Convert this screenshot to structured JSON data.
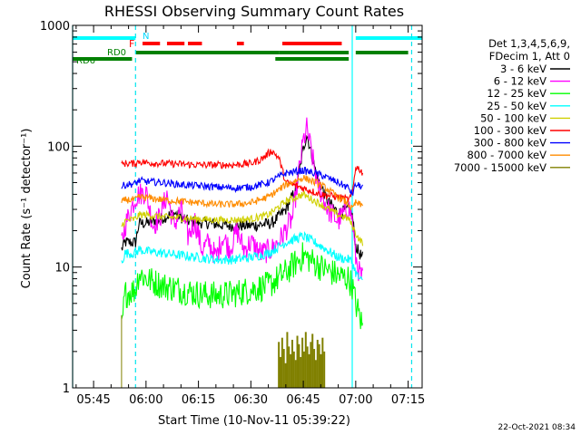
{
  "chart_data": {
    "type": "line",
    "title": "RHESSI Observing Summary Count Rates",
    "xlabel": "Start Time (10-Nov-11 05:39:22)",
    "ylabel": "Count Rate (s⁻¹ detector⁻¹)",
    "y_scale": "log",
    "ylim": [
      1,
      1000
    ],
    "xlim": [
      "05:39",
      "07:19"
    ],
    "x_ticks": [
      "05:45",
      "06:00",
      "06:15",
      "06:30",
      "06:45",
      "07:00",
      "07:15"
    ],
    "y_ticks": [
      "1",
      "10",
      "100",
      "1000"
    ],
    "grid": false,
    "legend_placement": "right",
    "legend_header": [
      "Det 1,3,4,5,6,9,",
      "FDecim 1, Att 0"
    ],
    "flag_labels": {
      "night": "N",
      "flare": "F",
      "rd0": "RD0",
      "rd6": "RD6"
    },
    "flags": {
      "night": [
        [
          "05:39",
          "05:57"
        ],
        [
          "07:00",
          "07:19"
        ]
      ],
      "flare": [
        [
          "05:59",
          "06:04"
        ],
        [
          "06:06",
          "06:11"
        ],
        [
          "06:12",
          "06:16"
        ],
        [
          "06:26",
          "06:28"
        ],
        [
          "06:39",
          "06:56"
        ]
      ],
      "rd0": [
        [
          "05:57",
          "06:38"
        ],
        [
          "06:38",
          "06:58"
        ],
        [
          "07:00",
          "07:15"
        ]
      ],
      "rd6": [
        [
          "05:39",
          "05:56"
        ],
        [
          "06:37",
          "06:58"
        ]
      ]
    },
    "vlines": [
      {
        "x": "05:39",
        "color": "#00ffff",
        "style": "solid"
      },
      {
        "x": "05:57",
        "color": "#00e5ee",
        "style": "dashed"
      },
      {
        "x": "06:59",
        "color": "#00ffff",
        "style": "solid"
      },
      {
        "x": "07:16",
        "color": "#00e5ee",
        "style": "dashed"
      }
    ],
    "time_stamp": "22-Oct-2021 08:34",
    "series": [
      {
        "name": "3 - 6 keV",
        "color": "#000000",
        "noise": 0.05,
        "points": [
          [
            "05:53",
            14
          ],
          [
            "05:54",
            16
          ],
          [
            "05:57",
            16
          ],
          [
            "05:58",
            23
          ],
          [
            "06:00",
            23
          ],
          [
            "06:04",
            25
          ],
          [
            "06:08",
            28
          ],
          [
            "06:12",
            24
          ],
          [
            "06:18",
            23
          ],
          [
            "06:24",
            22
          ],
          [
            "06:30",
            22
          ],
          [
            "06:36",
            23
          ],
          [
            "06:40",
            30
          ],
          [
            "06:43",
            45
          ],
          [
            "06:45",
            95
          ],
          [
            "06:46",
            125
          ],
          [
            "06:47",
            95
          ],
          [
            "06:49",
            55
          ],
          [
            "06:52",
            35
          ],
          [
            "06:55",
            28
          ],
          [
            "06:58",
            30
          ],
          [
            "06:59",
            27
          ],
          [
            "07:00",
            15
          ],
          [
            "07:01",
            13
          ],
          [
            "07:02",
            12
          ]
        ]
      },
      {
        "name": "6 - 12 keV",
        "color": "#ff00ff",
        "noise": 0.1,
        "points": [
          [
            "05:53",
            16
          ],
          [
            "05:54",
            22
          ],
          [
            "05:57",
            38
          ],
          [
            "05:58",
            40
          ],
          [
            "06:00",
            42
          ],
          [
            "06:02",
            22
          ],
          [
            "06:04",
            26
          ],
          [
            "06:06",
            40
          ],
          [
            "06:08",
            22
          ],
          [
            "06:10",
            30
          ],
          [
            "06:12",
            18
          ],
          [
            "06:14",
            24
          ],
          [
            "06:16",
            14
          ],
          [
            "06:18",
            16
          ],
          [
            "06:20",
            12
          ],
          [
            "06:22",
            18
          ],
          [
            "06:24",
            14
          ],
          [
            "06:26",
            20
          ],
          [
            "06:28",
            14
          ],
          [
            "06:30",
            16
          ],
          [
            "06:33",
            13
          ],
          [
            "06:36",
            14
          ],
          [
            "06:39",
            18
          ],
          [
            "06:42",
            26
          ],
          [
            "06:44",
            70
          ],
          [
            "06:45",
            110
          ],
          [
            "06:46",
            140
          ],
          [
            "06:47",
            100
          ],
          [
            "06:49",
            50
          ],
          [
            "06:52",
            30
          ],
          [
            "06:55",
            24
          ],
          [
            "06:58",
            32
          ],
          [
            "06:59",
            25
          ],
          [
            "07:00",
            12
          ],
          [
            "07:01",
            9
          ],
          [
            "07:02",
            8
          ]
        ]
      },
      {
        "name": "12 - 25 keV",
        "color": "#00ff00",
        "noise": 0.12,
        "points": [
          [
            "05:53",
            3
          ],
          [
            "05:54",
            6
          ],
          [
            "05:57",
            6.5
          ],
          [
            "05:58",
            9
          ],
          [
            "06:00",
            8
          ],
          [
            "06:05",
            7
          ],
          [
            "06:10",
            6.5
          ],
          [
            "06:15",
            6
          ],
          [
            "06:20",
            5.8
          ],
          [
            "06:25",
            6
          ],
          [
            "06:30",
            6.5
          ],
          [
            "06:35",
            7
          ],
          [
            "06:40",
            9
          ],
          [
            "06:45",
            12.5
          ],
          [
            "06:50",
            10
          ],
          [
            "06:55",
            8.5
          ],
          [
            "06:58",
            8
          ],
          [
            "06:59",
            7
          ],
          [
            "07:00",
            5
          ],
          [
            "07:01",
            4
          ],
          [
            "07:02",
            3.2
          ]
        ]
      },
      {
        "name": "25 - 50 keV",
        "color": "#00ffff",
        "noise": 0.04,
        "points": [
          [
            "05:53",
            11
          ],
          [
            "05:54",
            13
          ],
          [
            "05:57",
            13
          ],
          [
            "05:58",
            14
          ],
          [
            "06:00",
            13.5
          ],
          [
            "06:05",
            13
          ],
          [
            "06:10",
            12.5
          ],
          [
            "06:15",
            12
          ],
          [
            "06:20",
            11.5
          ],
          [
            "06:25",
            11.5
          ],
          [
            "06:30",
            12
          ],
          [
            "06:35",
            13
          ],
          [
            "06:40",
            16
          ],
          [
            "06:45",
            18
          ],
          [
            "06:50",
            15
          ],
          [
            "06:55",
            12
          ],
          [
            "06:58",
            11.5
          ],
          [
            "06:59",
            11
          ],
          [
            "07:00",
            9
          ],
          [
            "07:01",
            8
          ],
          [
            "07:02",
            7.5
          ]
        ]
      },
      {
        "name": "50 - 100 keV",
        "color": "#d0d000",
        "noise": 0.03,
        "points": [
          [
            "05:53",
            22
          ],
          [
            "05:54",
            24
          ],
          [
            "05:57",
            25
          ],
          [
            "05:58",
            27
          ],
          [
            "06:00",
            27
          ],
          [
            "06:05",
            26
          ],
          [
            "06:10",
            25.5
          ],
          [
            "06:15",
            25
          ],
          [
            "06:20",
            24.5
          ],
          [
            "06:25",
            24.5
          ],
          [
            "06:30",
            25
          ],
          [
            "06:35",
            27
          ],
          [
            "06:40",
            35
          ],
          [
            "06:45",
            40
          ],
          [
            "06:50",
            33
          ],
          [
            "06:55",
            27
          ],
          [
            "06:58",
            25
          ],
          [
            "06:59",
            22
          ],
          [
            "07:00",
            19
          ],
          [
            "07:01",
            17
          ],
          [
            "07:02",
            16
          ]
        ]
      },
      {
        "name": "100 - 300 keV",
        "color": "#ff0000",
        "noise": 0.03,
        "points": [
          [
            "05:53",
            70
          ],
          [
            "05:54",
            72
          ],
          [
            "05:57",
            72
          ],
          [
            "05:58",
            75
          ],
          [
            "06:00",
            73
          ],
          [
            "06:05",
            72
          ],
          [
            "06:10",
            71
          ],
          [
            "06:15",
            70
          ],
          [
            "06:20",
            70
          ],
          [
            "06:25",
            70
          ],
          [
            "06:30",
            72
          ],
          [
            "06:33",
            78
          ],
          [
            "06:36",
            92
          ],
          [
            "06:38",
            80
          ],
          [
            "06:40",
            50
          ],
          [
            "06:45",
            45
          ],
          [
            "06:50",
            40
          ],
          [
            "06:55",
            38
          ],
          [
            "06:58",
            36
          ],
          [
            "06:59",
            40
          ],
          [
            "07:00",
            68
          ],
          [
            "07:01",
            65
          ],
          [
            "07:02",
            60
          ]
        ]
      },
      {
        "name": "300 - 800 keV",
        "color": "#0000ff",
        "noise": 0.03,
        "points": [
          [
            "05:53",
            46
          ],
          [
            "05:54",
            48
          ],
          [
            "05:57",
            49
          ],
          [
            "05:58",
            52
          ],
          [
            "06:00",
            51
          ],
          [
            "06:05",
            50
          ],
          [
            "06:10",
            48
          ],
          [
            "06:15",
            47
          ],
          [
            "06:20",
            46
          ],
          [
            "06:25",
            45
          ],
          [
            "06:30",
            46
          ],
          [
            "06:35",
            50
          ],
          [
            "06:40",
            60
          ],
          [
            "06:45",
            63
          ],
          [
            "06:50",
            58
          ],
          [
            "06:55",
            50
          ],
          [
            "06:58",
            45
          ],
          [
            "06:59",
            40
          ],
          [
            "07:00",
            48
          ],
          [
            "07:01",
            47
          ],
          [
            "07:02",
            46
          ]
        ]
      },
      {
        "name": "800 - 7000 keV",
        "color": "#ff8c00",
        "noise": 0.03,
        "points": [
          [
            "05:53",
            34
          ],
          [
            "05:54",
            36
          ],
          [
            "05:57",
            36
          ],
          [
            "05:58",
            38
          ],
          [
            "06:00",
            37.5
          ],
          [
            "06:05",
            36
          ],
          [
            "06:10",
            35
          ],
          [
            "06:15",
            34
          ],
          [
            "06:20",
            33
          ],
          [
            "06:25",
            33
          ],
          [
            "06:30",
            34
          ],
          [
            "06:35",
            38
          ],
          [
            "06:40",
            48
          ],
          [
            "06:45",
            55
          ],
          [
            "06:50",
            48
          ],
          [
            "06:55",
            38
          ],
          [
            "06:58",
            33
          ],
          [
            "06:59",
            30
          ],
          [
            "07:00",
            34
          ],
          [
            "07:01",
            33
          ],
          [
            "07:02",
            32
          ]
        ]
      },
      {
        "name": "7000 - 15000 keV",
        "color": "#808000",
        "noise": 0,
        "points": []
      }
    ],
    "bursts": {
      "series": "7000 - 15000 keV",
      "x_range": [
        "06:38",
        "06:51"
      ],
      "values": [
        2.4,
        1.8,
        2.6,
        2.1,
        1.6,
        2.9,
        2.2,
        1.9,
        2.5,
        2.0,
        1.7,
        2.7,
        2.3,
        1.8,
        2.6,
        2.0,
        2.9,
        2.2,
        1.9,
        2.4,
        2.8,
        2.1,
        1.7,
        2.5,
        2.3,
        1.9,
        2.6,
        2.0
      ]
    }
  }
}
